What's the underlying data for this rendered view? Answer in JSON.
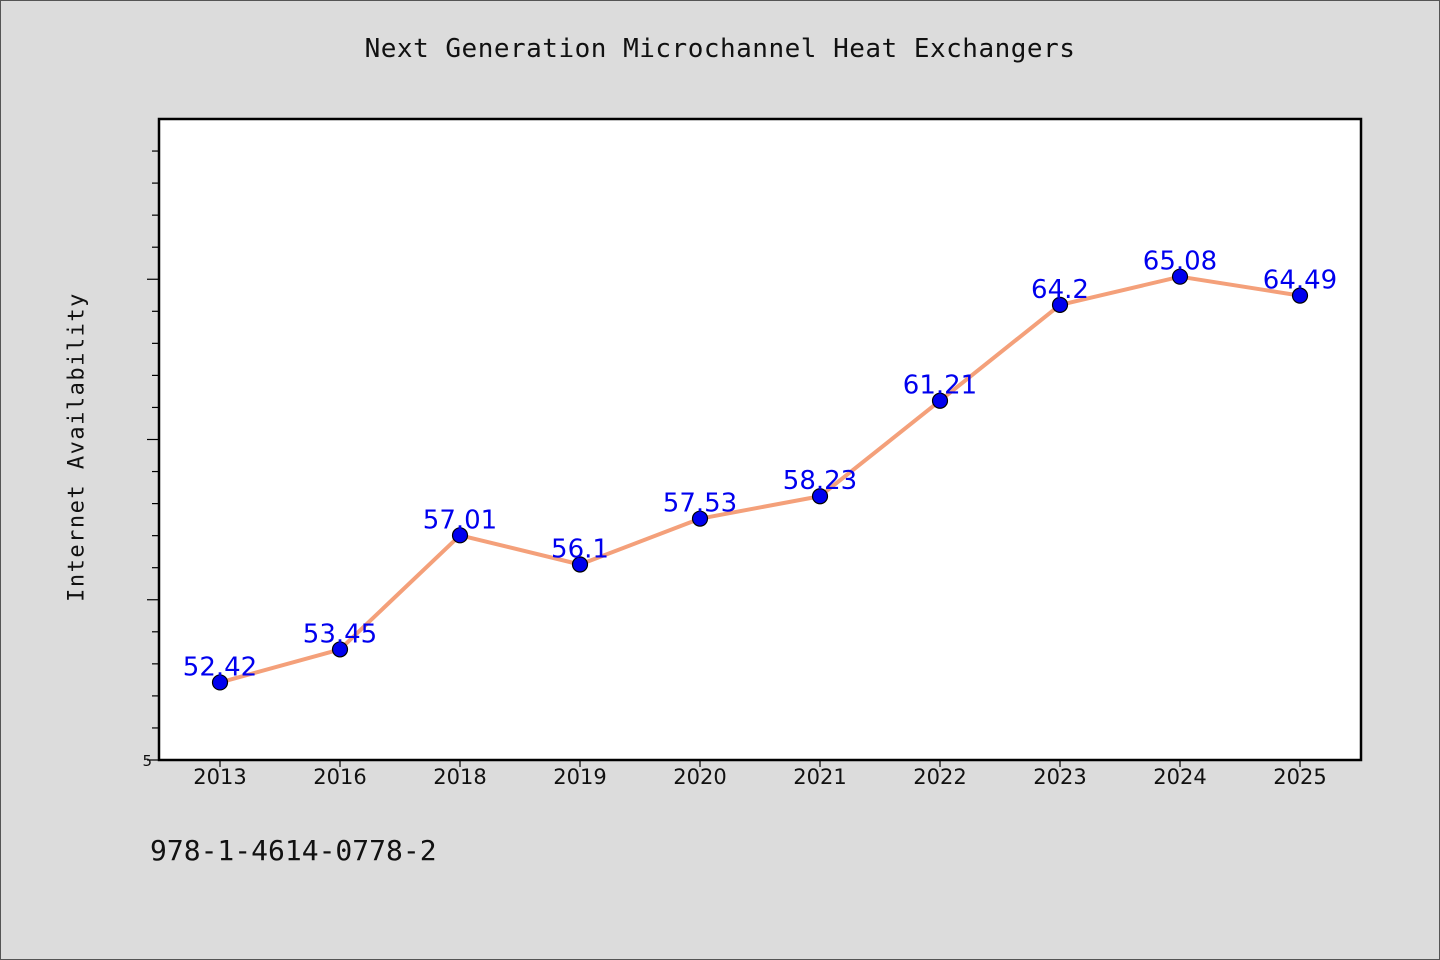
{
  "footer": {
    "code": "978-1-4614-0778-2"
  },
  "chart_data": {
    "type": "line",
    "title": "Next Generation Microchannel Heat Exchangers",
    "xlabel": "",
    "ylabel": "Internet Availability",
    "categories": [
      "2013",
      "2016",
      "2018",
      "2019",
      "2020",
      "2021",
      "2022",
      "2023",
      "2024",
      "2025"
    ],
    "series": [
      {
        "values": [
          52.42,
          53.45,
          57.01,
          56.1,
          57.53,
          58.23,
          61.21,
          64.2,
          65.08,
          64.49
        ],
        "labels": [
          "52.42",
          "53.45",
          "57.01",
          "56.1",
          "57.53",
          "58.23",
          "61.21",
          "64.2",
          "65.08",
          "64.49"
        ],
        "line_color": "#f4a07a",
        "marker_color": "#0000ee",
        "label_color": "#0000ee"
      }
    ],
    "ylim": [
      50,
      70
    ],
    "y_tick_labels": [
      {
        "value": 50,
        "label": "5"
      }
    ],
    "grid": false,
    "legend": "none"
  }
}
